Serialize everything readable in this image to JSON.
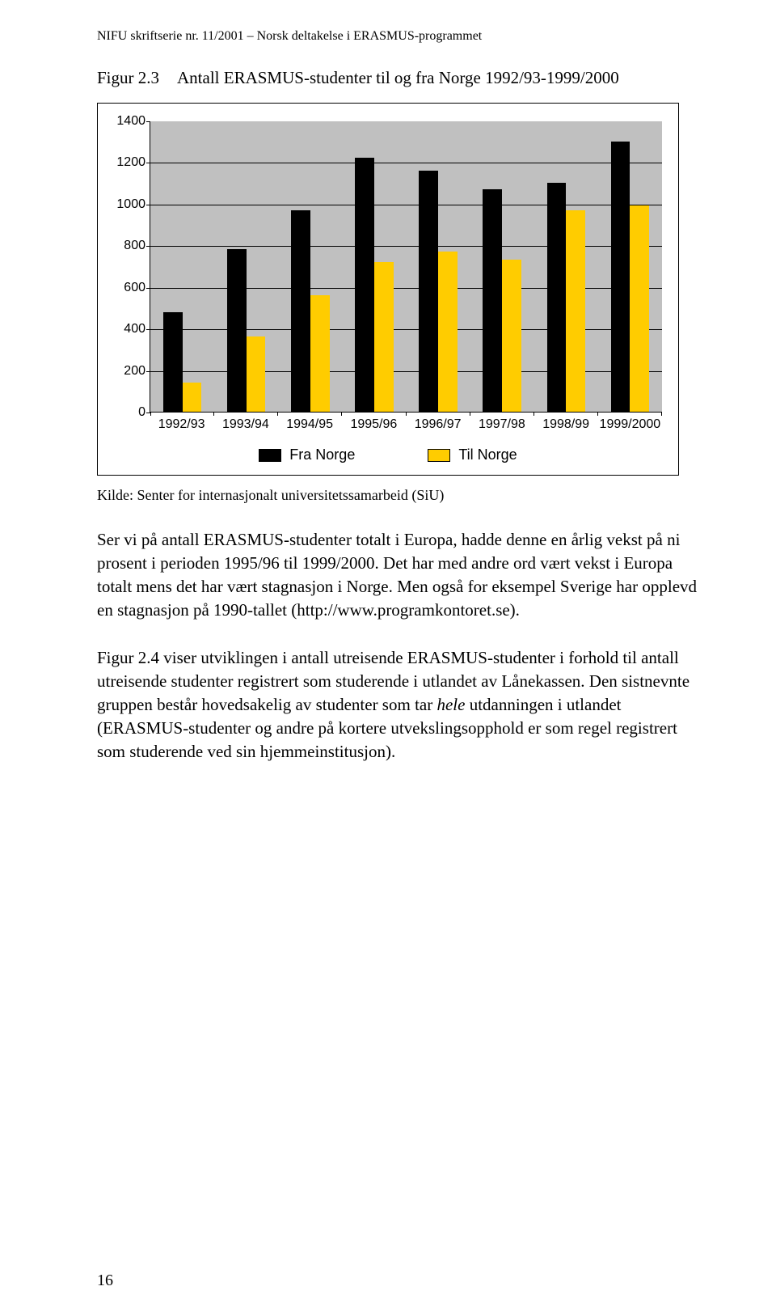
{
  "header": {
    "running": "NIFU skriftserie nr. 11/2001 – Norsk deltakelse i ERASMUS-programmet"
  },
  "figure": {
    "label": "Figur 2.3",
    "title": "Antall ERASMUS-studenter til og fra Norge 1992/93-1999/2000"
  },
  "chart": {
    "type": "bar",
    "background_color": "#c0c0c0",
    "grid_color": "#000000",
    "ylim": [
      0,
      1400
    ],
    "ytick_step": 200,
    "yticks": [
      0,
      200,
      400,
      600,
      800,
      1000,
      1200,
      1400
    ],
    "categories": [
      "1992/93",
      "1993/94",
      "1994/95",
      "1995/96",
      "1996/97",
      "1997/98",
      "1998/99",
      "1999/2000"
    ],
    "series": [
      {
        "name": "Fra Norge",
        "color": "#000000",
        "values": [
          480,
          780,
          970,
          1220,
          1160,
          1070,
          1100,
          1300
        ]
      },
      {
        "name": "Til Norge",
        "color": "#ffcc00",
        "values": [
          140,
          360,
          560,
          720,
          770,
          730,
          970,
          990
        ]
      }
    ],
    "bar_width_pct": 30,
    "xlabel_fontsize": 16,
    "ylabel_fontsize": 16,
    "legend_fontsize": 18,
    "legend": {
      "items": [
        {
          "label": "Fra Norge",
          "swatch": "fra"
        },
        {
          "label": "Til Norge",
          "swatch": "til"
        }
      ]
    }
  },
  "source": "Kilde: Senter for internasjonalt universitetssamarbeid (SiU)",
  "para1": "Ser vi på antall ERASMUS-studenter totalt i Europa, hadde denne en årlig vekst på ni prosent i perioden 1995/96 til 1999/2000. Det har med andre ord vært vekst i Europa totalt mens det har vært stagnasjon i Norge. Men også for eksempel Sverige har opplevd en stagnasjon på 1990-tallet (http://www.programkontoret.se).",
  "para2_a": "Figur 2.4 viser utviklingen i antall utreisende ERASMUS-studenter i forhold til antall utreisende studenter registrert som studerende i utlandet av Lånekassen. Den sistnevnte gruppen består hovedsakelig av studenter som tar ",
  "para2_em": "hele",
  "para2_b": " utdanningen i utlandet (ERASMUS-studenter og andre på kortere utvekslingsopphold er som regel registrert som studerende ved sin hjemmeinstitusjon).",
  "page_number": "16"
}
